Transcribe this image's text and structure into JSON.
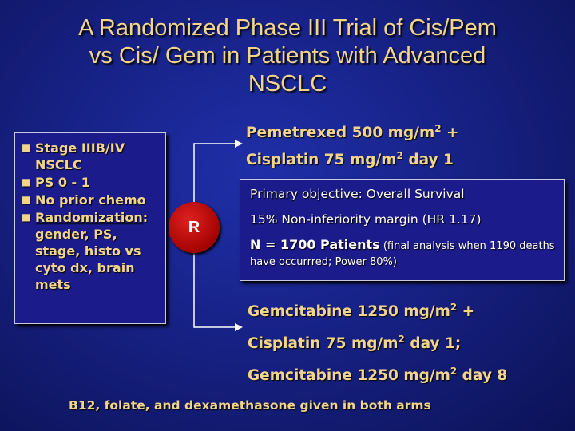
{
  "title": {
    "line1": "A Randomized Phase III Trial of Cis/Pem",
    "line2": "vs  Cis/ Gem in Patients with  Advanced",
    "line3": "NSCLC"
  },
  "eligibility": {
    "bullets": [
      {
        "text": "Stage IIIB/IV NSCLC"
      },
      {
        "text": "PS 0 - 1"
      },
      {
        "text": "No prior chemo"
      },
      {
        "lead": "Randomization",
        "text": ": gender, PS, stage, histo vs cyto dx, brain mets"
      }
    ]
  },
  "randomization": {
    "label": "R"
  },
  "arm_pemetrexed": {
    "line1_pre": "Pemetrexed 500 mg/m",
    "line1_sup": "2",
    "line1_post": " +",
    "line2_pre": "Cisplatin  75 mg/m",
    "line2_sup": "2",
    "line2_post": " day 1"
  },
  "objective": {
    "primary": "Primary objective:  Overall Survival",
    "margin": "15% Non-inferiority margin (HR 1.17)",
    "n_bold": "N = 1700 Patients",
    "n_detail": " (final analysis when 1190 deaths have occurrred; Power 80%)"
  },
  "arm_gemcitabine": {
    "line1_pre": "Gemcitabine 1250 mg/m",
    "line1_sup": "2",
    "line1_post": " +",
    "line2_pre": "Cisplatin 75 mg/m",
    "line2_sup": "2",
    "line2_post": " day 1;",
    "line3_pre": "Gemcitabine 1250 mg/m",
    "line3_sup": "2",
    "line3_post": " day 8"
  },
  "footer": "B12, folate, and dexamethasone given in both arms",
  "colors": {
    "background": "#18238a",
    "title_text": "#f2d58a",
    "box_fill": "#1b1b8c",
    "circle": "#c00000"
  }
}
